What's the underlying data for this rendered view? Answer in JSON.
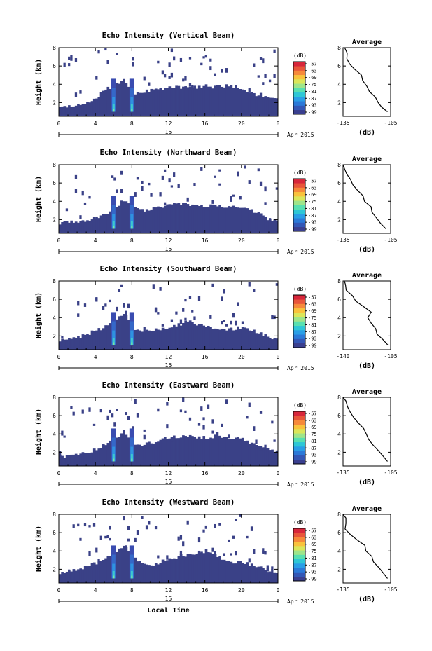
{
  "colors": {
    "background": "#ffffff",
    "echo_base": "#3a4187",
    "colorbar": [
      "#3a3f8f",
      "#3357b6",
      "#2b79d8",
      "#2a9ee6",
      "#2ec7d6",
      "#58e0b0",
      "#9ee58a",
      "#dbe65a",
      "#f9c23c",
      "#f6893a",
      "#e8553a",
      "#d7263a"
    ]
  },
  "chart_data": [
    {
      "type": "heatmap",
      "title": "Echo Intensity (Vertical Beam)",
      "ylabel": "Height (km)",
      "x_ticks": [
        "0",
        "4",
        "8",
        "12",
        "16",
        "20",
        "0"
      ],
      "date_ticks": [
        "15"
      ],
      "date_label": "Apr 2015",
      "xlim": [
        0,
        24
      ],
      "ylim": [
        0.5,
        8
      ],
      "y_ticks": [
        "2",
        "4",
        "6",
        "8"
      ],
      "colorbar": {
        "label": "(dB)",
        "ticks": [
          "-57",
          "-63",
          "-69",
          "-75",
          "-81",
          "-87",
          "-93",
          "-99"
        ]
      },
      "cloud_top_km": [
        1.5,
        1.6,
        1.7,
        2.0,
        2.4,
        3.5,
        3.8,
        4.5,
        2.8,
        3.2,
        3.3,
        3.5,
        3.6,
        3.7,
        3.6,
        3.7,
        3.8,
        3.7,
        3.8,
        3.8,
        3.6,
        3.0,
        2.8,
        2.5
      ],
      "strong_echo_hours": [
        6,
        8
      ],
      "profile": {
        "title": "Average",
        "xlabel": "(dB)",
        "x_ticks": [
          "-135",
          "-105"
        ],
        "y_ticks": [
          "2",
          "4",
          "6",
          "8"
        ],
        "xlim": [
          -135,
          -105
        ],
        "ylim": [
          0.5,
          8
        ],
        "points": [
          [
            -107,
            1
          ],
          [
            -110,
            1.5
          ],
          [
            -113,
            2
          ],
          [
            -115,
            2.6
          ],
          [
            -118,
            3.2
          ],
          [
            -120,
            3.8
          ],
          [
            -122,
            4.4
          ],
          [
            -124,
            5
          ],
          [
            -127,
            5.6
          ],
          [
            -130,
            6.2
          ],
          [
            -132,
            6.8
          ],
          [
            -133,
            7.4
          ],
          [
            -134,
            8
          ]
        ]
      }
    },
    {
      "type": "heatmap",
      "title": "Echo Intensity (Northward Beam)",
      "ylabel": "Height (km)",
      "x_ticks": [
        "0",
        "4",
        "8",
        "12",
        "16",
        "20",
        "0"
      ],
      "date_ticks": [
        "15"
      ],
      "date_label": "Apr 2015",
      "xlim": [
        0,
        24
      ],
      "ylim": [
        0.5,
        8
      ],
      "y_ticks": [
        "2",
        "4",
        "6",
        "8"
      ],
      "colorbar": {
        "label": "(dB)",
        "ticks": [
          "-57",
          "-63",
          "-69",
          "-75",
          "-81",
          "-87",
          "-93",
          "-99"
        ]
      },
      "cloud_top_km": [
        1.6,
        1.7,
        1.8,
        2.0,
        2.2,
        2.6,
        3.0,
        4.2,
        3.4,
        3.0,
        3.1,
        3.4,
        3.6,
        3.7,
        3.7,
        3.6,
        3.5,
        3.6,
        3.5,
        3.4,
        3.3,
        3.0,
        2.5,
        2.0
      ],
      "strong_echo_hours": [
        6,
        8
      ],
      "profile": {
        "title": "Average",
        "xlabel": "(dB)",
        "x_ticks": [
          "-135",
          "-105"
        ],
        "y_ticks": [
          "2",
          "4",
          "6",
          "8"
        ],
        "xlim": [
          -135,
          -105
        ],
        "ylim": [
          0.5,
          8
        ],
        "points": [
          [
            -108,
            1
          ],
          [
            -111,
            1.6
          ],
          [
            -114,
            2.2
          ],
          [
            -116,
            2.8
          ],
          [
            -118,
            3.4
          ],
          [
            -121,
            4
          ],
          [
            -123,
            4.6
          ],
          [
            -125,
            5.2
          ],
          [
            -128,
            5.8
          ],
          [
            -131,
            6.4
          ],
          [
            -133,
            7
          ],
          [
            -134,
            7.6
          ],
          [
            -135,
            8
          ]
        ]
      }
    },
    {
      "type": "heatmap",
      "title": "Echo Intensity (Southward Beam)",
      "ylabel": "Height (km)",
      "x_ticks": [
        "0",
        "4",
        "8",
        "12",
        "16",
        "20",
        "0"
      ],
      "date_ticks": [
        "15"
      ],
      "date_label": "Apr 2015",
      "xlim": [
        0,
        24
      ],
      "ylim": [
        0.5,
        8
      ],
      "y_ticks": [
        "2",
        "4",
        "6",
        "8"
      ],
      "colorbar": {
        "label": "(dB)",
        "ticks": [
          "-57",
          "-63",
          "-69",
          "-75",
          "-81",
          "-87",
          "-93",
          "-99"
        ]
      },
      "cloud_top_km": [
        1.5,
        1.6,
        1.8,
        2.2,
        2.6,
        3.0,
        3.6,
        4.6,
        2.8,
        2.6,
        2.6,
        2.7,
        2.9,
        3.2,
        3.6,
        3.3,
        3.0,
        2.8,
        2.6,
        2.8,
        3.0,
        2.7,
        2.2,
        1.8
      ],
      "strong_echo_hours": [
        6,
        8
      ],
      "profile": {
        "title": "Average",
        "xlabel": "(dB)",
        "x_ticks": [
          "-140",
          "-105"
        ],
        "y_ticks": [
          "2",
          "4",
          "6",
          "8"
        ],
        "xlim": [
          -140,
          -105
        ],
        "ylim": [
          0.5,
          8
        ],
        "points": [
          [
            -107,
            1
          ],
          [
            -111,
            1.6
          ],
          [
            -115,
            2.2
          ],
          [
            -117,
            2.8
          ],
          [
            -119,
            3.4
          ],
          [
            -121,
            4
          ],
          [
            -120,
            4.6
          ],
          [
            -124,
            5.2
          ],
          [
            -130,
            5.8
          ],
          [
            -134,
            6.4
          ],
          [
            -137,
            7
          ],
          [
            -138,
            7.6
          ],
          [
            -139,
            8
          ]
        ]
      }
    },
    {
      "type": "heatmap",
      "title": "Echo Intensity (Eastward Beam)",
      "ylabel": "Height (km)",
      "x_ticks": [
        "0",
        "4",
        "8",
        "12",
        "16",
        "20",
        "0"
      ],
      "date_ticks": [
        "15"
      ],
      "date_label": "Apr 2015",
      "xlim": [
        0,
        24
      ],
      "ylim": [
        0.5,
        8
      ],
      "y_ticks": [
        "2",
        "4",
        "6",
        "8"
      ],
      "colorbar": {
        "label": "(dB)",
        "ticks": [
          "-57",
          "-63",
          "-69",
          "-75",
          "-81",
          "-87",
          "-93",
          "-99"
        ]
      },
      "cloud_top_km": [
        1.5,
        1.6,
        1.8,
        2.0,
        2.3,
        2.8,
        3.4,
        4.4,
        3.0,
        2.8,
        3.0,
        3.4,
        3.6,
        3.7,
        3.7,
        3.6,
        3.6,
        3.7,
        3.6,
        3.5,
        3.4,
        3.0,
        2.6,
        2.2
      ],
      "strong_echo_hours": [
        6,
        8
      ],
      "profile": {
        "title": "Average",
        "xlabel": "(dB)",
        "x_ticks": [
          "-135",
          "-105"
        ],
        "y_ticks": [
          "2",
          "4",
          "6",
          "8"
        ],
        "xlim": [
          -135,
          -105
        ],
        "ylim": [
          0.5,
          8
        ],
        "points": [
          [
            -107,
            1
          ],
          [
            -110,
            1.6
          ],
          [
            -113,
            2.2
          ],
          [
            -116,
            2.8
          ],
          [
            -118,
            3.4
          ],
          [
            -120,
            4
          ],
          [
            -122,
            4.6
          ],
          [
            -125,
            5.2
          ],
          [
            -128,
            5.8
          ],
          [
            -131,
            6.4
          ],
          [
            -133,
            7
          ],
          [
            -134,
            7.6
          ],
          [
            -135,
            8
          ]
        ]
      }
    },
    {
      "type": "heatmap",
      "title": "Echo Intensity (Westward Beam)",
      "ylabel": "Height (km)",
      "x_ticks": [
        "0",
        "4",
        "8",
        "12",
        "16",
        "20",
        "0"
      ],
      "date_ticks": [
        "15"
      ],
      "date_label": "Apr 2015",
      "xlim": [
        0,
        24
      ],
      "ylim": [
        0.5,
        8
      ],
      "y_ticks": [
        "2",
        "4",
        "6",
        "8"
      ],
      "xlabel": "Local Time",
      "colorbar": {
        "label": "(dB)",
        "ticks": [
          "-57",
          "-63",
          "-69",
          "-75",
          "-81",
          "-87",
          "-93",
          "-99"
        ]
      },
      "cloud_top_km": [
        1.6,
        1.7,
        2.0,
        2.3,
        2.7,
        3.2,
        3.8,
        4.6,
        3.4,
        2.6,
        2.4,
        2.8,
        3.2,
        3.4,
        3.6,
        3.8,
        4.0,
        3.6,
        3.0,
        2.8,
        2.7,
        2.5,
        2.2,
        1.8
      ],
      "strong_echo_hours": [
        6,
        8
      ],
      "profile": {
        "title": "Average",
        "xlabel": "(dB)",
        "x_ticks": [
          "-135",
          "-105"
        ],
        "y_ticks": [
          "2",
          "4",
          "6",
          "8"
        ],
        "xlim": [
          -135,
          -105
        ],
        "ylim": [
          0.5,
          8
        ],
        "points": [
          [
            -107,
            1
          ],
          [
            -110,
            1.6
          ],
          [
            -113,
            2.2
          ],
          [
            -115,
            2.8
          ],
          [
            -117,
            3.4
          ],
          [
            -120,
            4
          ],
          [
            -122,
            4.6
          ],
          [
            -126,
            5.2
          ],
          [
            -131,
            5.8
          ],
          [
            -133,
            6.4
          ],
          [
            -134,
            7
          ],
          [
            -134,
            7.6
          ],
          [
            -135,
            8
          ]
        ]
      }
    }
  ]
}
